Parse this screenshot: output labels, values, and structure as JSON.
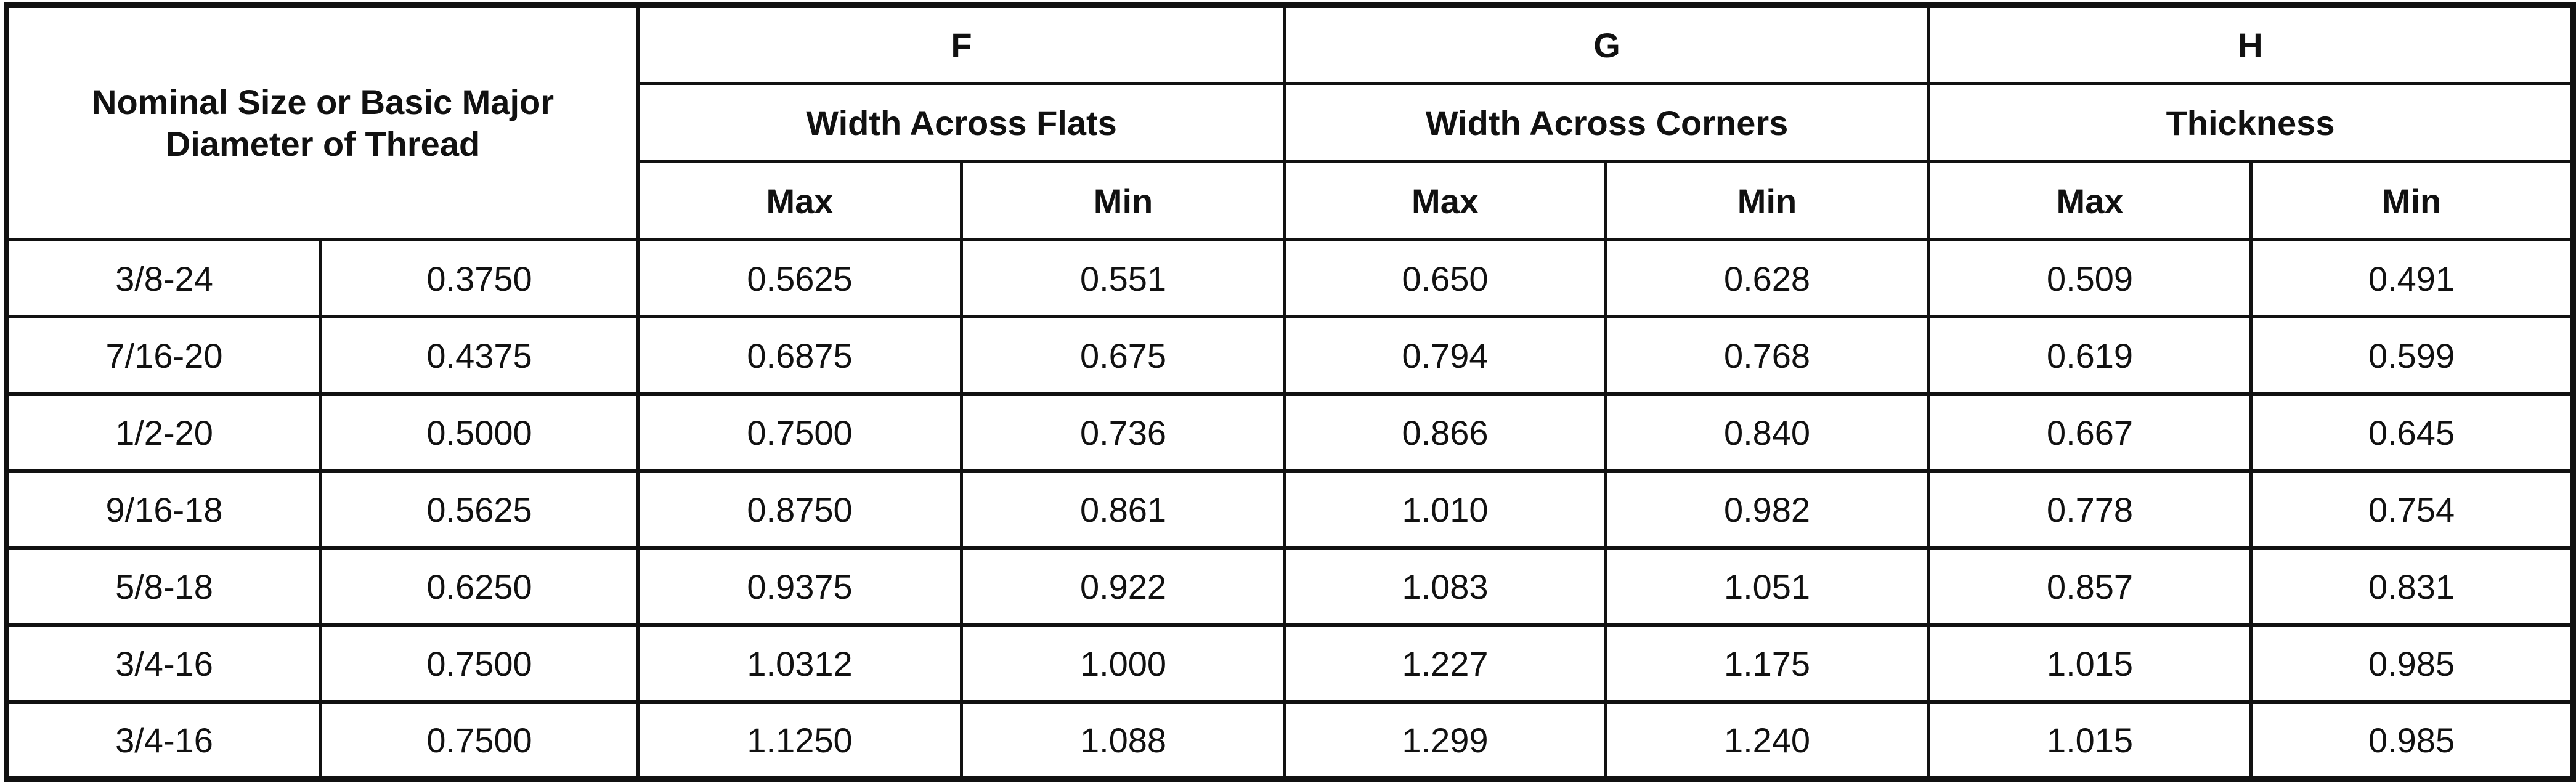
{
  "header": {
    "nominal": "Nominal Size or Basic Major Diameter of Thread",
    "groups": [
      {
        "letter": "F",
        "label": "Width Across Flats",
        "sub": [
          "Max",
          "Min"
        ]
      },
      {
        "letter": "G",
        "label": "Width Across Corners",
        "sub": [
          "Max",
          "Min"
        ]
      },
      {
        "letter": "H",
        "label": "Thickness",
        "sub": [
          "Max",
          "Min"
        ]
      }
    ]
  },
  "rows": [
    [
      "3/8-24",
      "0.3750",
      "0.5625",
      "0.551",
      "0.650",
      "0.628",
      "0.509",
      "0.491"
    ],
    [
      "7/16-20",
      "0.4375",
      "0.6875",
      "0.675",
      "0.794",
      "0.768",
      "0.619",
      "0.599"
    ],
    [
      "1/2-20",
      "0.5000",
      "0.7500",
      "0.736",
      "0.866",
      "0.840",
      "0.667",
      "0.645"
    ],
    [
      "9/16-18",
      "0.5625",
      "0.8750",
      "0.861",
      "1.010",
      "0.982",
      "0.778",
      "0.754"
    ],
    [
      "5/8-18",
      "0.6250",
      "0.9375",
      "0.922",
      "1.083",
      "1.051",
      "0.857",
      "0.831"
    ],
    [
      "3/4-16",
      "0.7500",
      "1.0312",
      "1.000",
      "1.227",
      "1.175",
      "1.015",
      "0.985"
    ],
    [
      "3/4-16",
      "0.7500",
      "1.1250",
      "1.088",
      "1.299",
      "1.240",
      "1.015",
      "0.985"
    ]
  ]
}
